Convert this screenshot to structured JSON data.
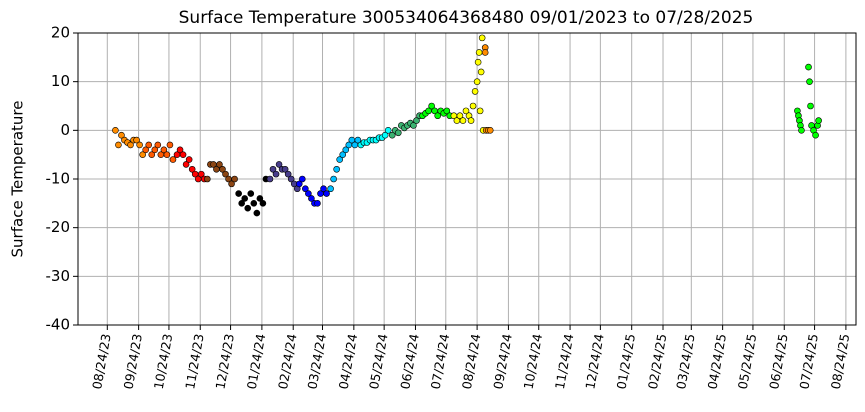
{
  "chart_data": {
    "type": "scatter",
    "title": "Surface Temperature 300534064368480  09/01/2023 to 07/28/2025",
    "y_label": "Surface Temperature",
    "xlim": [
      "2023-07-26",
      "2025-09-03"
    ],
    "ylim": [
      -40,
      20
    ],
    "yticks": [
      -40,
      -30,
      -20,
      -10,
      0,
      10,
      20
    ],
    "xticks": [
      {
        "value": "2023-08-24",
        "label": "08/24/23"
      },
      {
        "value": "2023-09-24",
        "label": "09/24/23"
      },
      {
        "value": "2023-10-24",
        "label": "10/24/23"
      },
      {
        "value": "2023-11-24",
        "label": "11/24/23"
      },
      {
        "value": "2023-12-24",
        "label": "12/24/23"
      },
      {
        "value": "2024-01-24",
        "label": "01/24/24"
      },
      {
        "value": "2024-02-24",
        "label": "02/24/24"
      },
      {
        "value": "2024-03-24",
        "label": "03/24/24"
      },
      {
        "value": "2024-04-24",
        "label": "04/24/24"
      },
      {
        "value": "2024-05-24",
        "label": "05/24/24"
      },
      {
        "value": "2024-06-24",
        "label": "06/24/24"
      },
      {
        "value": "2024-07-24",
        "label": "07/24/24"
      },
      {
        "value": "2024-08-24",
        "label": "08/24/24"
      },
      {
        "value": "2024-09-24",
        "label": "09/24/24"
      },
      {
        "value": "2024-10-24",
        "label": "10/24/24"
      },
      {
        "value": "2024-11-24",
        "label": "11/24/24"
      },
      {
        "value": "2024-12-24",
        "label": "12/24/24"
      },
      {
        "value": "2025-01-24",
        "label": "01/24/25"
      },
      {
        "value": "2025-02-24",
        "label": "02/24/25"
      },
      {
        "value": "2025-03-24",
        "label": "03/24/25"
      },
      {
        "value": "2025-04-24",
        "label": "04/24/25"
      },
      {
        "value": "2025-05-24",
        "label": "05/24/25"
      },
      {
        "value": "2025-06-24",
        "label": "06/24/25"
      },
      {
        "value": "2025-07-24",
        "label": "07/24/25"
      },
      {
        "value": "2025-08-24",
        "label": "08/24/25"
      }
    ],
    "grid": true,
    "series": [
      {
        "color": "#ff8c00",
        "x": [
          "2023-09-01",
          "2023-09-04",
          "2023-09-07",
          "2023-09-10",
          "2023-09-13",
          "2023-09-16",
          "2023-09-19",
          "2023-09-22",
          "2023-09-25",
          "2023-09-28"
        ],
        "values": [
          0,
          -3,
          -1,
          -2,
          -2.5,
          -3,
          -2,
          -2,
          -3,
          -5
        ]
      },
      {
        "color": "#ff5a00",
        "x": [
          "2023-10-01",
          "2023-10-04",
          "2023-10-07",
          "2023-10-10",
          "2023-10-13",
          "2023-10-16",
          "2023-10-19",
          "2023-10-22",
          "2023-10-25",
          "2023-10-28"
        ],
        "values": [
          -4,
          -3,
          -5,
          -4,
          -3,
          -5,
          -4,
          -5,
          -3,
          -6
        ]
      },
      {
        "color": "#ff0000",
        "x": [
          "2023-11-01",
          "2023-11-04",
          "2023-11-07",
          "2023-11-10",
          "2023-11-13",
          "2023-11-16",
          "2023-11-19",
          "2023-11-22",
          "2023-11-25",
          "2023-11-28"
        ],
        "values": [
          -5,
          -4,
          -5,
          -7,
          -6,
          -8,
          -9,
          -10,
          -9,
          -10
        ]
      },
      {
        "color": "#8b4513",
        "x": [
          "2023-12-01",
          "2023-12-04",
          "2023-12-07",
          "2023-12-10",
          "2023-12-13",
          "2023-12-16",
          "2023-12-19",
          "2023-12-22",
          "2023-12-25",
          "2023-12-28"
        ],
        "values": [
          -10,
          -7,
          -7,
          -8,
          -7,
          -8,
          -9,
          -10,
          -11,
          -10
        ]
      },
      {
        "color": "#000000",
        "x": [
          "2024-01-01",
          "2024-01-04",
          "2024-01-07",
          "2024-01-10",
          "2024-01-13",
          "2024-01-16",
          "2024-01-19",
          "2024-01-22",
          "2024-01-25",
          "2024-01-28"
        ],
        "values": [
          -13,
          -15,
          -14,
          -16,
          -13,
          -15,
          -17,
          -14,
          -15,
          -10
        ]
      },
      {
        "color": "#483d8b",
        "x": [
          "2024-02-01",
          "2024-02-04",
          "2024-02-07",
          "2024-02-10",
          "2024-02-13",
          "2024-02-16",
          "2024-02-19",
          "2024-02-22",
          "2024-02-25",
          "2024-02-28"
        ],
        "values": [
          -10,
          -8,
          -9,
          -7,
          -8,
          -8,
          -9,
          -10,
          -11,
          -12
        ]
      },
      {
        "color": "#0000ff",
        "x": [
          "2024-03-01",
          "2024-03-04",
          "2024-03-07",
          "2024-03-10",
          "2024-03-13",
          "2024-03-16",
          "2024-03-19",
          "2024-03-22",
          "2024-03-25",
          "2024-03-28"
        ],
        "values": [
          -11,
          -10,
          -12,
          -13,
          -14,
          -15,
          -15,
          -13,
          -12,
          -13
        ]
      },
      {
        "color": "#00bfff",
        "x": [
          "2024-04-01",
          "2024-04-04",
          "2024-04-07",
          "2024-04-10",
          "2024-04-13",
          "2024-04-16",
          "2024-04-19",
          "2024-04-22",
          "2024-04-25",
          "2024-04-28"
        ],
        "values": [
          -12,
          -10,
          -8,
          -6,
          -5,
          -4,
          -3,
          -2,
          -3,
          -2
        ]
      },
      {
        "color": "#00ffff",
        "x": [
          "2024-05-01",
          "2024-05-04",
          "2024-05-07",
          "2024-05-10",
          "2024-05-13",
          "2024-05-16",
          "2024-05-19",
          "2024-05-22",
          "2024-05-25",
          "2024-05-28"
        ],
        "values": [
          -3,
          -2.5,
          -2.5,
          -2,
          -2,
          -2,
          -1.5,
          -1.5,
          -1,
          0
        ]
      },
      {
        "color": "#3cb371",
        "x": [
          "2024-06-01",
          "2024-06-04",
          "2024-06-07",
          "2024-06-10",
          "2024-06-13",
          "2024-06-16",
          "2024-06-19",
          "2024-06-22",
          "2024-06-25",
          "2024-06-28"
        ],
        "values": [
          -1,
          0,
          -0.5,
          1,
          0.5,
          1,
          1.5,
          1,
          2,
          3
        ]
      },
      {
        "color": "#00ff00",
        "x": [
          "2024-07-01",
          "2024-07-04",
          "2024-07-07",
          "2024-07-10",
          "2024-07-13",
          "2024-07-16",
          "2024-07-19",
          "2024-07-22",
          "2024-07-25",
          "2024-07-28"
        ],
        "values": [
          3,
          3.5,
          4,
          5,
          4,
          3,
          4,
          3.5,
          4,
          3
        ]
      },
      {
        "color": "#ffff00",
        "x": [
          "2024-08-01",
          "2024-08-04",
          "2024-08-07",
          "2024-08-10",
          "2024-08-13",
          "2024-08-16",
          "2024-08-18",
          "2024-08-20",
          "2024-08-22",
          "2024-08-24",
          "2024-08-25",
          "2024-08-26",
          "2024-08-27",
          "2024-08-28",
          "2024-08-29",
          "2024-08-30"
        ],
        "values": [
          3,
          2,
          3,
          2,
          4,
          3,
          2,
          5,
          8,
          10,
          14,
          16,
          4,
          12,
          19,
          0
        ]
      },
      {
        "color": "#ff8c00",
        "x": [
          "2024-09-01",
          "2024-09-01",
          "2024-09-02",
          "2024-09-04",
          "2024-09-06"
        ],
        "values": [
          17,
          16,
          0,
          0,
          0
        ]
      },
      {
        "color": "#00ff00",
        "x": [
          "2025-07-07",
          "2025-07-08",
          "2025-07-09",
          "2025-07-10",
          "2025-07-11",
          "2025-07-18",
          "2025-07-19",
          "2025-07-20",
          "2025-07-21",
          "2025-07-23",
          "2025-07-25",
          "2025-07-27",
          "2025-07-28"
        ],
        "values": [
          4,
          3,
          2,
          1,
          0,
          13,
          10,
          5,
          1,
          0,
          -1,
          1,
          2
        ]
      }
    ]
  }
}
